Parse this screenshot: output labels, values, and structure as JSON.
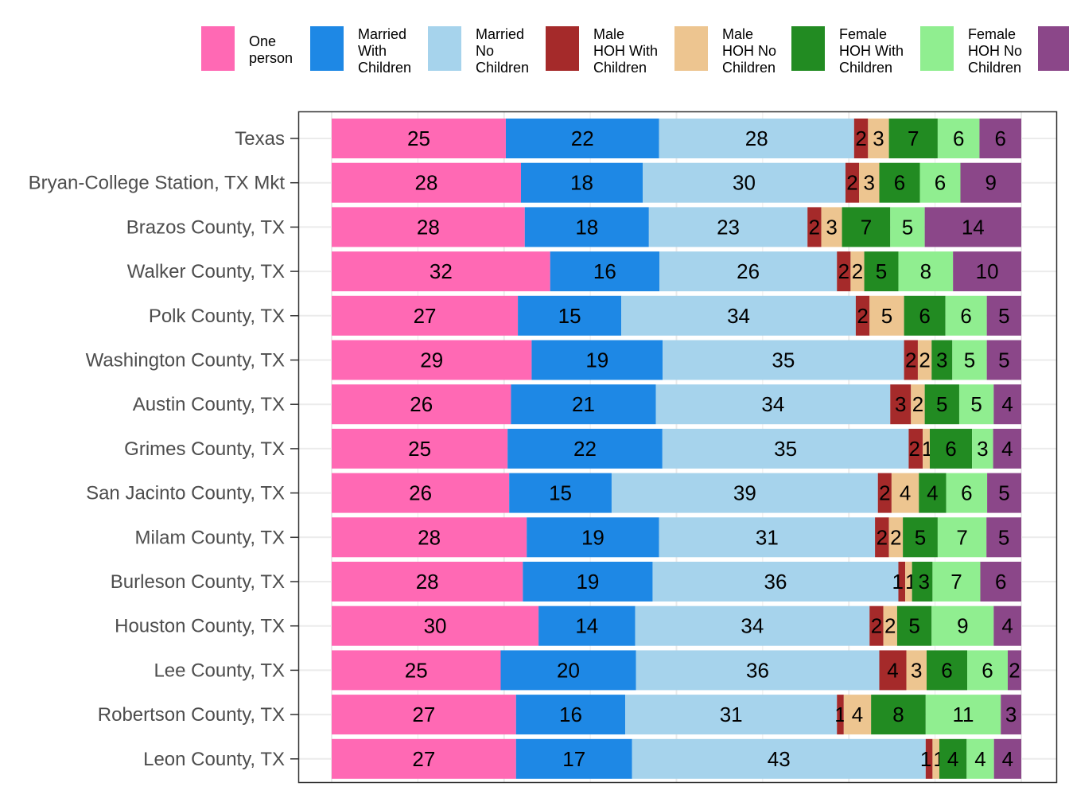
{
  "chart_data": {
    "type": "bar",
    "orientation": "horizontal",
    "stacked": true,
    "normalized_percent": true,
    "xlim": [
      0,
      100
    ],
    "grid": true,
    "legend_position": "top",
    "categories": [
      "Texas",
      "Bryan-College Station, TX Mkt",
      "Brazos County, TX",
      "Walker County, TX",
      "Polk County, TX",
      "Washington County, TX",
      "Austin County, TX",
      "Grimes County, TX",
      "San Jacinto County, TX",
      "Milam County, TX",
      "Burleson County, TX",
      "Houston County, TX",
      "Lee County, TX",
      "Robertson County, TX",
      "Leon County, TX"
    ],
    "series": [
      {
        "name": "One person",
        "color": "#FF69B4",
        "values": [
          25,
          28,
          28,
          32,
          27,
          29,
          26,
          25,
          26,
          28,
          28,
          30,
          25,
          27,
          27
        ]
      },
      {
        "name": "Married With Children",
        "color": "#1E88E5",
        "values": [
          22,
          18,
          18,
          16,
          15,
          19,
          21,
          22,
          15,
          19,
          19,
          14,
          20,
          16,
          17
        ]
      },
      {
        "name": "Married No Children",
        "color": "#A6D3EC",
        "values": [
          28,
          30,
          23,
          26,
          34,
          35,
          34,
          35,
          39,
          31,
          36,
          34,
          36,
          31,
          43
        ]
      },
      {
        "name": "Male HOH With Children",
        "color": "#A52A2A",
        "values": [
          2,
          2,
          2,
          2,
          2,
          2,
          3,
          2,
          2,
          2,
          1,
          2,
          4,
          1,
          1
        ]
      },
      {
        "name": "Male HOH No Children",
        "color": "#EDC590",
        "values": [
          3,
          3,
          3,
          2,
          5,
          2,
          2,
          1,
          4,
          2,
          1,
          2,
          3,
          4,
          1
        ]
      },
      {
        "name": "Female HOH With Children",
        "color": "#228B22",
        "values": [
          7,
          6,
          7,
          5,
          6,
          3,
          5,
          6,
          4,
          5,
          3,
          5,
          6,
          8,
          4
        ]
      },
      {
        "name": "Female HOH No Children",
        "color": "#90EE90",
        "values": [
          6,
          6,
          5,
          8,
          6,
          5,
          5,
          3,
          6,
          7,
          7,
          9,
          6,
          11,
          4
        ]
      },
      {
        "name": "",
        "color": "#8B4789",
        "values": [
          6,
          9,
          14,
          10,
          5,
          5,
          4,
          4,
          5,
          5,
          6,
          4,
          2,
          3,
          4
        ]
      }
    ]
  }
}
